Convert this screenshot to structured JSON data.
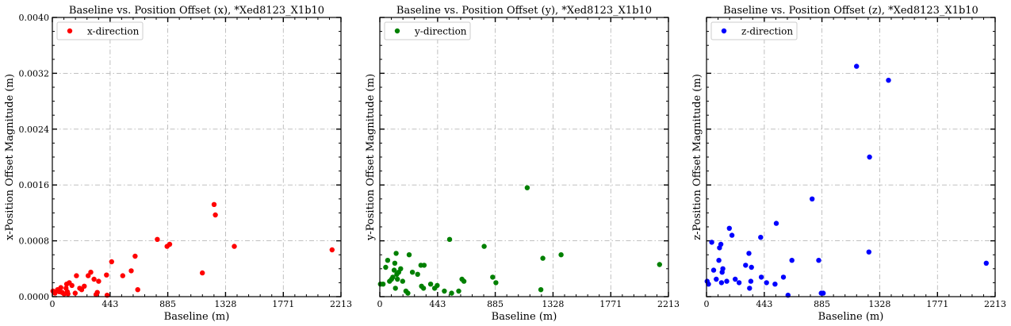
{
  "chart_data": [
    {
      "type": "scatter",
      "title": "Baseline vs. Position Offset (x), *Xed8123_X1b10",
      "xlabel": "Baseline (m)",
      "ylabel": "x-Position Offset Magnitude (m)",
      "xlim": [
        0,
        2213
      ],
      "ylim": [
        0,
        0.004
      ],
      "xticks": [
        "0",
        "443",
        "885",
        "1328",
        "1771",
        "2213"
      ],
      "yticks": [
        "0.0000",
        "0.0008",
        "0.0016",
        "0.0024",
        "0.0032",
        "0.0040"
      ],
      "grid": true,
      "legend": "top-left",
      "series": [
        {
          "name": "x-direction",
          "color": "#ff0000",
          "x": [
            5,
            20,
            40,
            55,
            65,
            75,
            90,
            105,
            110,
            115,
            120,
            130,
            150,
            175,
            185,
            210,
            225,
            245,
            275,
            295,
            320,
            335,
            345,
            355,
            415,
            420,
            455,
            540,
            605,
            635,
            655,
            805,
            880,
            900,
            1150,
            1240,
            1250,
            1395,
            2145
          ],
          "y": [
            8e-05,
            5e-05,
            0.0001,
            7e-05,
            0.00013,
            6e-05,
            4e-05,
            0.00012,
            0.00018,
            7e-05,
            4e-05,
            0.0002,
            0.00016,
            5e-05,
            0.0003,
            0.00012,
            0.0001,
            0.00015,
            0.0003,
            0.00035,
            0.00025,
            3e-05,
            6e-05,
            0.00022,
            0.00031,
            2e-05,
            0.0005,
            0.0003,
            0.00037,
            0.00058,
            0.0001,
            0.00082,
            0.00072,
            0.00075,
            0.00034,
            0.00132,
            0.00117,
            0.00072,
            0.00067
          ]
        }
      ]
    },
    {
      "type": "scatter",
      "title": "Baseline vs. Position Offset (y), *Xed8123_X1b10",
      "xlabel": "Baseline (m)",
      "ylabel": "y-Position Offset Magnitude (m)",
      "xlim": [
        0,
        2213
      ],
      "ylim": [
        0,
        0.004
      ],
      "xticks": [
        "0",
        "443",
        "885",
        "1328",
        "1771",
        "2213"
      ],
      "yticks": [
        "0.0000",
        "0.0008",
        "0.0016",
        "0.0024",
        "0.0032",
        "0.0040"
      ],
      "grid": true,
      "legend": "top-left",
      "series": [
        {
          "name": "y-direction",
          "color": "#008000",
          "x": [
            5,
            25,
            45,
            60,
            75,
            90,
            100,
            110,
            115,
            120,
            125,
            130,
            135,
            145,
            160,
            175,
            200,
            215,
            225,
            250,
            290,
            315,
            320,
            335,
            340,
            390,
            420,
            440,
            495,
            535,
            550,
            605,
            630,
            645,
            800,
            865,
            890,
            1130,
            1235,
            1250,
            1390,
            2145
          ],
          "y": [
            0.00018,
            0.00018,
            0.00042,
            0.00052,
            0.00022,
            0.00025,
            0.00028,
            0.00038,
            0.00048,
            0.00012,
            0.00062,
            0.00032,
            0.00025,
            0.00035,
            0.0004,
            0.00022,
            8e-05,
            5e-05,
            0.0006,
            0.00035,
            0.00032,
            0.00045,
            0.00015,
            0.00012,
            0.00045,
            0.00018,
            0.00012,
            0.00016,
            8e-05,
            0.00082,
            5e-05,
            8e-05,
            0.00025,
            0.00022,
            0.00072,
            0.00028,
            0.0002,
            0.00156,
            0.0001,
            0.00055,
            0.0006,
            0.00046
          ]
        }
      ]
    },
    {
      "type": "scatter",
      "title": "Baseline vs. Position Offset (z), *Xed8123_X1b10",
      "xlabel": "Baseline (m)",
      "ylabel": "z-Position Offset Magnitude (m)",
      "xlim": [
        0,
        2213
      ],
      "ylim": [
        0,
        0.004
      ],
      "xticks": [
        "0",
        "443",
        "885",
        "1328",
        "1771",
        "2213"
      ],
      "yticks": [
        "0.0000",
        "0.0008",
        "0.0016",
        "0.0024",
        "0.0032",
        "0.0040"
      ],
      "grid": true,
      "legend": "top-left",
      "series": [
        {
          "name": "z-direction",
          "color": "#0000ff",
          "x": [
            5,
            15,
            40,
            55,
            75,
            95,
            100,
            110,
            115,
            120,
            125,
            155,
            175,
            195,
            220,
            250,
            300,
            325,
            330,
            340,
            345,
            415,
            420,
            460,
            525,
            535,
            590,
            625,
            655,
            810,
            860,
            880,
            895,
            1150,
            1245,
            1250,
            1395,
            2145
          ],
          "y": [
            0.00022,
            0.00018,
            0.00078,
            0.00038,
            0.00025,
            0.00052,
            0.0007,
            0.00075,
            0.0002,
            0.00035,
            0.0004,
            0.00022,
            0.00098,
            0.00088,
            0.00025,
            0.0002,
            0.00045,
            0.00062,
            0.00012,
            0.00022,
            0.00042,
            0.00085,
            0.00028,
            0.0002,
            0.00018,
            0.00105,
            0.00028,
            2e-05,
            0.00052,
            0.0014,
            0.00052,
            5e-05,
            5e-05,
            0.0033,
            0.00064,
            0.002,
            0.0031,
            0.00048
          ]
        }
      ]
    }
  ]
}
